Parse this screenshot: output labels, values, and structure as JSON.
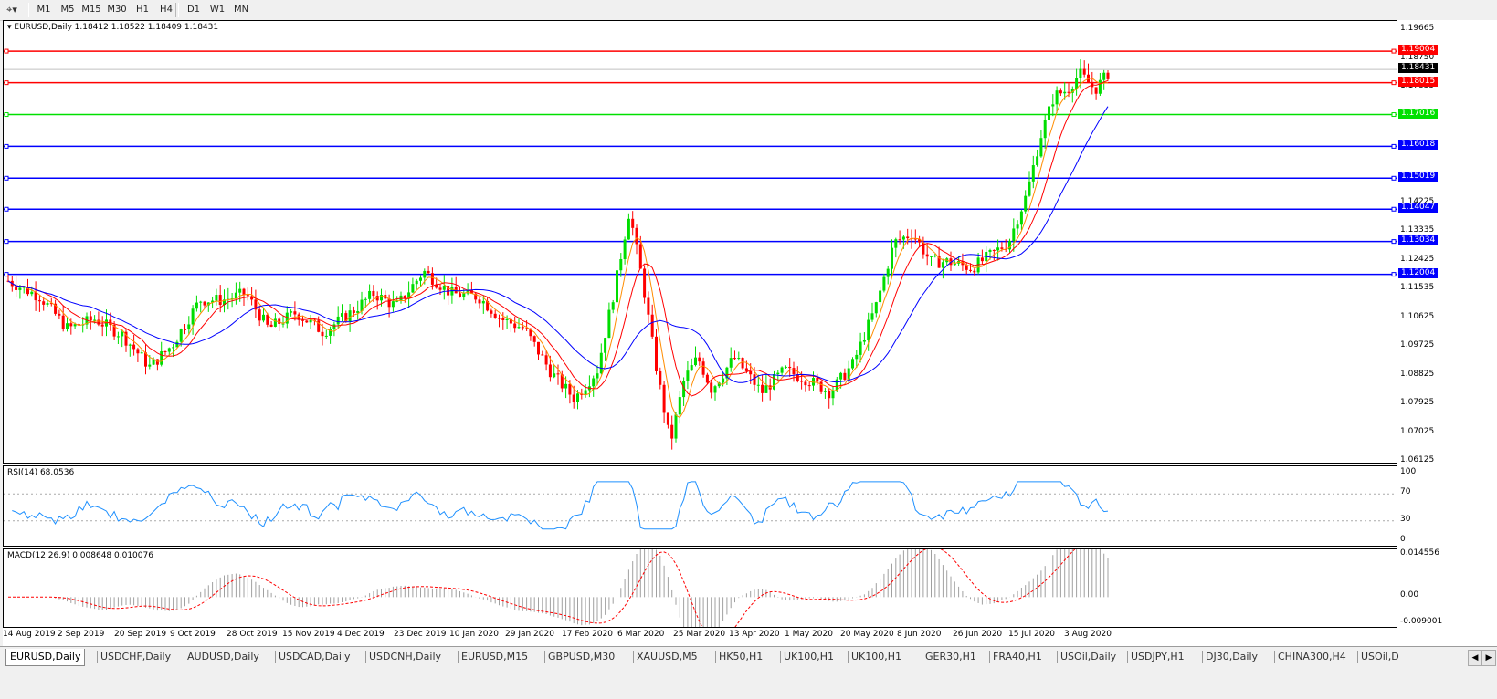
{
  "toolbar": {
    "timeframes": [
      "M1",
      "M5",
      "M15",
      "M30",
      "H1",
      "H4",
      "D1",
      "W1",
      "MN"
    ]
  },
  "main": {
    "label": "EURUSD,Daily  1.18412 1.18522 1.18409 1.18431",
    "price_axis": [
      "1.19665",
      "1.18750",
      "1.17855",
      "1.14225",
      "1.13335",
      "1.12425",
      "1.11535",
      "1.10625",
      "1.09725",
      "1.08825",
      "1.07925",
      "1.07025",
      "1.06125"
    ],
    "hlines": [
      {
        "price": "1.19004",
        "color": "#ff0000"
      },
      {
        "price": "1.18015",
        "color": "#ff0000"
      },
      {
        "price": "1.17016",
        "color": "#00e000"
      },
      {
        "price": "1.16018",
        "color": "#0000ff"
      },
      {
        "price": "1.15019",
        "color": "#0000ff"
      },
      {
        "price": "1.14047",
        "color": "#0000ff"
      },
      {
        "price": "1.13034",
        "color": "#0000ff"
      },
      {
        "price": "1.12004",
        "color": "#0000ff"
      }
    ],
    "current_price": "1.18431"
  },
  "rsi": {
    "label": "RSI(14) 68.0536",
    "levels": [
      "100",
      "70",
      "30",
      "0"
    ]
  },
  "macd": {
    "label": "MACD(12,26,9) 0.008648 0.010076",
    "levels": [
      "0.014556",
      "0.00",
      "-0.009001"
    ]
  },
  "dates": [
    "14 Aug 2019",
    "2 Sep 2019",
    "20 Sep 2019",
    "9 Oct 2019",
    "28 Oct 2019",
    "15 Nov 2019",
    "4 Dec 2019",
    "23 Dec 2019",
    "10 Jan 2020",
    "29 Jan 2020",
    "17 Feb 2020",
    "6 Mar 2020",
    "25 Mar 2020",
    "13 Apr 2020",
    "1 May 2020",
    "20 May 2020",
    "8 Jun 2020",
    "26 Jun 2020",
    "15 Jul 2020",
    "3 Aug 2020"
  ],
  "tabs": [
    "EURUSD,Daily",
    "USDCHF,Daily",
    "AUDUSD,Daily",
    "USDCAD,Daily",
    "USDCNH,Daily",
    "EURUSD,M15",
    "GBPUSD,M30",
    "XAUUSD,M5",
    "HK50,H1",
    "UK100,H1",
    "UK100,H1",
    "GER30,H1",
    "FRA40,H1",
    "USOil,Daily",
    "USDJPY,H1",
    "DJ30,Daily",
    "CHINA300,H4",
    "USOil,D"
  ],
  "colors": {
    "up": "#00dd00",
    "down": "#ff0000",
    "ma_fast": "#ff8c00",
    "ma_mid": "#ff0000",
    "ma_slow": "#0000ff",
    "rsi": "#1e90ff",
    "macd_signal": "#ff0000"
  }
}
